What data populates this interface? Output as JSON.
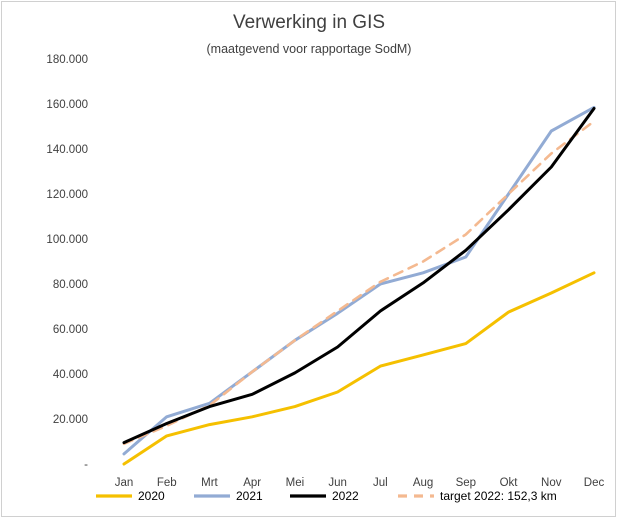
{
  "chart_data": {
    "type": "line",
    "title": "Verwerking in GIS",
    "subtitle": "(maatgevend voor rapportage SodM)",
    "categories": [
      "Jan",
      "Feb",
      "Mrt",
      "Apr",
      "Mei",
      "Jun",
      "Jul",
      "Aug",
      "Sep",
      "Okt",
      "Nov",
      "Dec"
    ],
    "y_tick_labels": [
      "-",
      "20.000",
      "40.000",
      "60.000",
      "80.000",
      "100.000",
      "120.000",
      "140.000",
      "160.000",
      "180.000"
    ],
    "ylim": [
      0,
      180000
    ],
    "y_tick_step": 20000,
    "grid": false,
    "legend_position": "bottom",
    "series": [
      {
        "name": "2020",
        "color": "#f5c000",
        "dash": false,
        "values": [
          0,
          12500,
          17500,
          21000,
          25500,
          32000,
          43500,
          48500,
          53500,
          67500,
          76000,
          85000
        ]
      },
      {
        "name": "2021",
        "color": "#92abd4",
        "dash": false,
        "values": [
          4500,
          21000,
          27000,
          41000,
          55000,
          67000,
          80000,
          85000,
          92000,
          120000,
          148000,
          158500
        ]
      },
      {
        "name": "2022",
        "color": "#000000",
        "dash": false,
        "values": [
          9500,
          18000,
          25500,
          31000,
          40500,
          52000,
          68000,
          80500,
          95000,
          113000,
          132000,
          158000
        ]
      },
      {
        "name": "target 2022: 152,3 km",
        "color": "#f4b990",
        "dash": true,
        "values": [
          9000,
          17000,
          26000,
          41000,
          55000,
          68000,
          81000,
          90000,
          102000,
          120000,
          138000,
          152300
        ]
      }
    ]
  }
}
